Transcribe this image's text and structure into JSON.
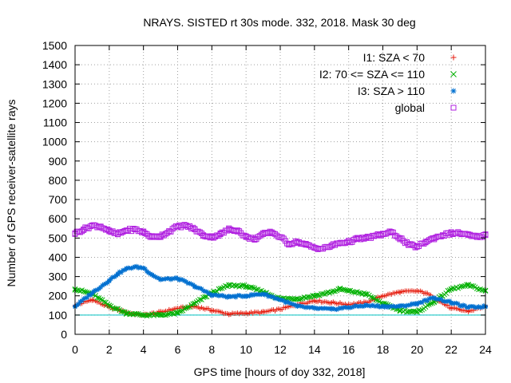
{
  "chart_data": {
    "type": "scatter",
    "title": "NRAYS. SISTED rt 30s mode. 332, 2018. Mask 30 deg",
    "xlabel": "GPS time [hours of doy 332, 2018]",
    "ylabel": "Number of GPS receiver-satellite rays",
    "xlim": [
      0,
      24
    ],
    "ylim": [
      0,
      1500
    ],
    "xticks": [
      0,
      2,
      4,
      6,
      8,
      10,
      12,
      14,
      16,
      18,
      20,
      22,
      24
    ],
    "yticks": [
      0,
      100,
      200,
      300,
      400,
      500,
      600,
      700,
      800,
      900,
      1000,
      1100,
      1200,
      1300,
      1400,
      1500
    ],
    "grid": true,
    "legend_position": "top-right",
    "reference_line": {
      "y": 100,
      "color": "#00c0c0"
    },
    "series": [
      {
        "name": "I1: SZA < 70",
        "color": "#e51e10",
        "marker": "+",
        "x": [
          0,
          1,
          2,
          3,
          3.5,
          4,
          5,
          6,
          7,
          8,
          9,
          10,
          11,
          12,
          13,
          14,
          15,
          16,
          17,
          18,
          19,
          20,
          20.5,
          21,
          22,
          23,
          24
        ],
        "values": [
          150,
          180,
          140,
          115,
          105,
          100,
          115,
          135,
          145,
          125,
          105,
          110,
          115,
          130,
          155,
          175,
          165,
          155,
          165,
          200,
          220,
          225,
          215,
          190,
          135,
          120,
          145
        ]
      },
      {
        "name": "I2: 70 <= SZA <= 110",
        "color": "#00b000",
        "marker": "x",
        "x": [
          0,
          1,
          2,
          3,
          4,
          5,
          6,
          7,
          8,
          9,
          10,
          11,
          12,
          13,
          14,
          15,
          15.5,
          16,
          17,
          18,
          19,
          20,
          21,
          22,
          23,
          24
        ],
        "values": [
          235,
          210,
          150,
          110,
          100,
          100,
          110,
          160,
          215,
          255,
          250,
          220,
          185,
          185,
          200,
          220,
          235,
          225,
          210,
          160,
          125,
          115,
          170,
          235,
          255,
          225
        ]
      },
      {
        "name": "I3: SZA > 110",
        "color": "#0070d0",
        "marker": "*",
        "x": [
          0,
          1,
          2,
          2.5,
          3,
          3.5,
          4,
          4.5,
          5,
          6,
          7,
          8,
          9,
          10,
          11,
          12,
          13,
          14,
          15,
          16,
          17,
          18,
          19,
          20,
          21,
          22,
          23,
          24
        ],
        "values": [
          145,
          215,
          280,
          315,
          340,
          350,
          345,
          310,
          285,
          290,
          250,
          205,
          195,
          200,
          210,
          180,
          145,
          135,
          130,
          140,
          150,
          145,
          145,
          160,
          190,
          165,
          140,
          145
        ]
      },
      {
        "name": "global",
        "color": "#b020e0",
        "marker": "square",
        "x": [
          0,
          0.5,
          1,
          1.5,
          2,
          2.5,
          3,
          3.5,
          4,
          4.5,
          5,
          5.5,
          6,
          6.5,
          7,
          7.5,
          8,
          8.5,
          9,
          9.5,
          10,
          10.5,
          11,
          11.5,
          12,
          12.5,
          13,
          13.5,
          14,
          14.5,
          15,
          15.5,
          16,
          16.5,
          17,
          17.5,
          18,
          18.5,
          19,
          19.5,
          20,
          20.5,
          21,
          21.5,
          22,
          22.5,
          23,
          23.5,
          24
        ],
        "values": [
          525,
          545,
          565,
          560,
          535,
          520,
          540,
          545,
          530,
          505,
          510,
          535,
          560,
          565,
          545,
          515,
          505,
          520,
          545,
          540,
          505,
          495,
          520,
          530,
          505,
          470,
          480,
          465,
          450,
          445,
          460,
          475,
          480,
          495,
          500,
          510,
          520,
          530,
          500,
          465,
          455,
          480,
          500,
          515,
          525,
          525,
          515,
          505,
          515
        ]
      }
    ]
  }
}
